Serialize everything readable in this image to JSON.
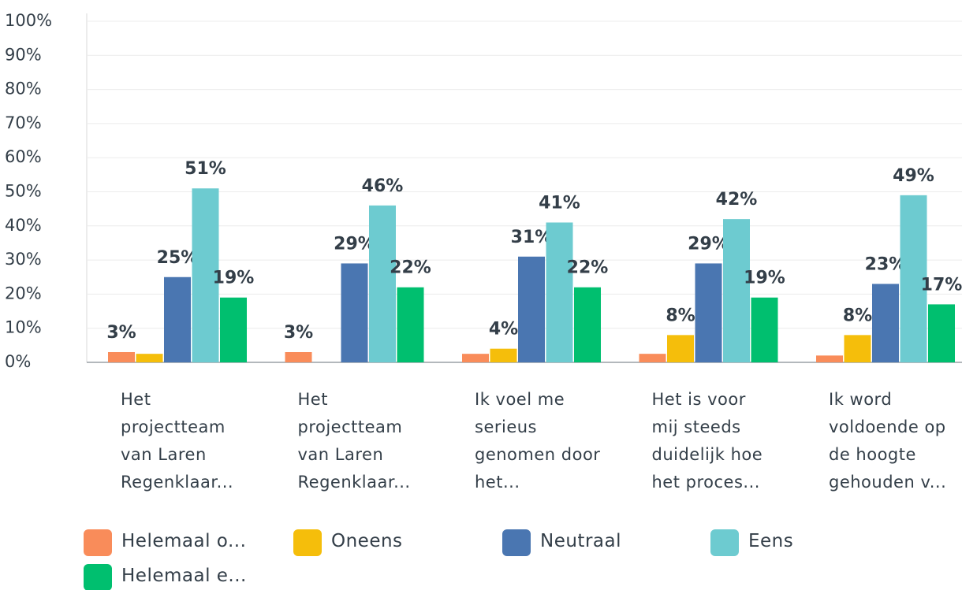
{
  "chart_data": {
    "type": "bar",
    "categories": [
      "Het\nprojectteam\nvan Laren\nRegenklaar...",
      "Het\nprojectteam\nvan Laren\nRegenklaar...",
      "Ik voel me\nserieus\ngenomen door\nhet...",
      "Het is voor\nmij steeds\nduidelijk hoe\nhet proces...",
      "Ik word\nvoldoende op\nde hoogte\ngehouden v..."
    ],
    "series": [
      {
        "name": "Helemaal o...",
        "color": "#f98c5a",
        "values": [
          3,
          3,
          2.5,
          2.5,
          2
        ],
        "value_labels": [
          "3%",
          "3%",
          null,
          null,
          null
        ]
      },
      {
        "name": "Oneens",
        "color": "#f5be0b",
        "values": [
          2.5,
          0,
          4,
          8,
          8
        ],
        "value_labels": [
          null,
          null,
          "4%",
          "8%",
          "8%"
        ]
      },
      {
        "name": "Neutraal",
        "color": "#4a76b1",
        "values": [
          25,
          29,
          31,
          29,
          23
        ],
        "value_labels": [
          "25%",
          "29%",
          "31%",
          "29%",
          "23%"
        ]
      },
      {
        "name": "Eens",
        "color": "#6dcbd0",
        "values": [
          51,
          46,
          41,
          42,
          49
        ],
        "value_labels": [
          "51%",
          "46%",
          "41%",
          "42%",
          "49%"
        ]
      },
      {
        "name": "Helemaal e...",
        "color": "#00bf6f",
        "values": [
          19,
          22,
          22,
          19,
          17
        ],
        "value_labels": [
          "19%",
          "22%",
          "22%",
          "19%",
          "17%"
        ]
      }
    ],
    "ylim": [
      0,
      100
    ],
    "yticks": [
      {
        "value": 0,
        "label": "0%"
      },
      {
        "value": 10,
        "label": "10%"
      },
      {
        "value": 20,
        "label": "20%"
      },
      {
        "value": 30,
        "label": "30%"
      },
      {
        "value": 40,
        "label": "40%"
      },
      {
        "value": 50,
        "label": "50%"
      },
      {
        "value": 60,
        "label": "60%"
      },
      {
        "value": 70,
        "label": "70%"
      },
      {
        "value": 80,
        "label": "80%"
      },
      {
        "value": 90,
        "label": "90%"
      },
      {
        "value": 100,
        "label": "100%"
      }
    ],
    "grid": true
  }
}
